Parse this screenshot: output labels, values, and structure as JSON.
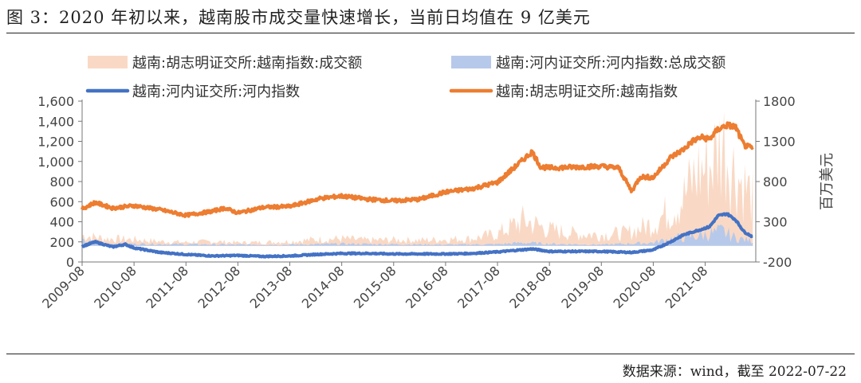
{
  "header": {
    "title": "图 3：2020 年初以来，越南股市成交量快速增长，当前日均值在 9 亿美元"
  },
  "footer": {
    "source": "数据来源：wind，截至 2022-07-22"
  },
  "chart_data": {
    "type": "line",
    "x_ticks": [
      "2009-08",
      "2010-08",
      "2011-08",
      "2012-08",
      "2013-08",
      "2014-08",
      "2015-08",
      "2016-08",
      "2017-08",
      "2018-08",
      "2019-08",
      "2020-08",
      "2021-08"
    ],
    "x_range": [
      "2009-08",
      "2022-07-22"
    ],
    "left_axis": {
      "range": [
        0,
        1600
      ],
      "ticks": [
        "0",
        "200",
        "400",
        "600",
        "800",
        "1,000",
        "1,200",
        "1,400",
        "1,600"
      ]
    },
    "right_axis": {
      "label": "百万美元",
      "range": [
        -200,
        1800
      ],
      "ticks": [
        "-200",
        "300",
        "800",
        "1300",
        "1800"
      ]
    },
    "legend": {
      "position": "top"
    },
    "colors": {
      "hcm_volume": "#f9d9c5",
      "hnx_volume": "#b7c9ea",
      "hnx_index": "#4472c4",
      "vn_index": "#ed7d31"
    },
    "series": [
      {
        "name": "越南:胡志明证交所:越南指数:成交额",
        "kind": "area",
        "axis": "right",
        "x": [
          "2009-08",
          "2010-02",
          "2010-08",
          "2011-02",
          "2011-08",
          "2012-02",
          "2012-08",
          "2013-02",
          "2013-08",
          "2014-02",
          "2014-08",
          "2015-02",
          "2015-08",
          "2016-02",
          "2016-08",
          "2017-02",
          "2017-08",
          "2018-02",
          "2018-08",
          "2019-02",
          "2019-08",
          "2020-02",
          "2020-08",
          "2020-12",
          "2021-03",
          "2021-06",
          "2021-09",
          "2021-12",
          "2022-03",
          "2022-07"
        ],
        "values": [
          130,
          90,
          80,
          55,
          45,
          55,
          40,
          45,
          55,
          80,
          90,
          70,
          75,
          70,
          80,
          90,
          150,
          320,
          200,
          150,
          140,
          160,
          280,
          450,
          600,
          900,
          1000,
          1300,
          900,
          600
        ]
      },
      {
        "name": "越南:河内证交所:河内指数:总成交额",
        "kind": "area",
        "axis": "right",
        "x": [
          "2009-08",
          "2010-02",
          "2010-08",
          "2011-08",
          "2012-08",
          "2013-08",
          "2014-08",
          "2015-08",
          "2016-08",
          "2017-08",
          "2018-02",
          "2018-08",
          "2019-08",
          "2020-08",
          "2020-12",
          "2021-06",
          "2021-09",
          "2021-12",
          "2022-03",
          "2022-07"
        ],
        "values": [
          60,
          30,
          25,
          20,
          15,
          15,
          25,
          20,
          15,
          20,
          40,
          25,
          15,
          40,
          90,
          120,
          150,
          180,
          100,
          60
        ]
      },
      {
        "name": "越南:河内证交所:河内指数",
        "kind": "line",
        "axis": "left",
        "x": [
          "2009-08",
          "2009-11",
          "2010-03",
          "2010-06",
          "2010-08",
          "2011-02",
          "2011-08",
          "2012-02",
          "2012-08",
          "2013-02",
          "2013-08",
          "2014-02",
          "2014-08",
          "2015-02",
          "2015-08",
          "2016-02",
          "2016-08",
          "2017-02",
          "2017-08",
          "2018-04",
          "2018-08",
          "2019-02",
          "2019-08",
          "2020-03",
          "2020-08",
          "2020-12",
          "2021-03",
          "2021-06",
          "2021-09",
          "2021-11",
          "2022-01",
          "2022-03",
          "2022-05",
          "2022-07"
        ],
        "values": [
          155,
          200,
          150,
          175,
          140,
          95,
          75,
          60,
          65,
          55,
          60,
          75,
          85,
          85,
          80,
          80,
          80,
          85,
          100,
          130,
          105,
          105,
          105,
          95,
          120,
          200,
          270,
          310,
          350,
          460,
          480,
          420,
          300,
          250
        ]
      },
      {
        "name": "越南:胡志明证交所:越南指数",
        "kind": "line",
        "axis": "right",
        "x": [
          "2009-08",
          "2009-11",
          "2010-03",
          "2010-08",
          "2011-02",
          "2011-08",
          "2012-02",
          "2012-05",
          "2012-08",
          "2013-02",
          "2013-08",
          "2014-03",
          "2014-08",
          "2015-02",
          "2015-08",
          "2016-02",
          "2016-08",
          "2017-02",
          "2017-08",
          "2018-04",
          "2018-06",
          "2018-08",
          "2019-02",
          "2019-08",
          "2019-12",
          "2020-03",
          "2020-05",
          "2020-08",
          "2020-12",
          "2021-03",
          "2021-05",
          "2021-07",
          "2021-09",
          "2021-11",
          "2022-01",
          "2022-03",
          "2022-05",
          "2022-07"
        ],
        "values": [
          460,
          540,
          470,
          500,
          450,
          380,
          430,
          470,
          410,
          480,
          490,
          590,
          620,
          580,
          560,
          580,
          670,
          710,
          790,
          1170,
          980,
          970,
          980,
          990,
          970,
          680,
          860,
          850,
          1100,
          1200,
          1300,
          1350,
          1330,
          1450,
          1500,
          1480,
          1250,
          1210
        ]
      }
    ]
  }
}
